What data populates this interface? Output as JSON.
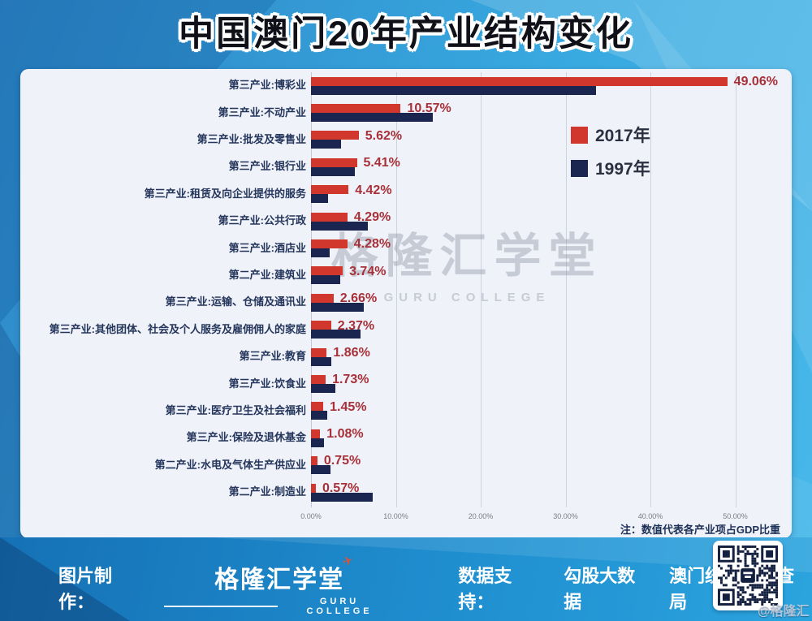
{
  "title": "中国澳门20年产业结构变化",
  "chart_data": {
    "type": "bar",
    "orientation": "horizontal",
    "title": "中国澳门20年产业结构变化",
    "categories": [
      "第三产业:博彩业",
      "第三产业:不动产业",
      "第三产业:批发及零售业",
      "第三产业:银行业",
      "第三产业:租赁及向企业提供的服务",
      "第三产业:公共行政",
      "第三产业:酒店业",
      "第二产业:建筑业",
      "第三产业:运输、仓储及通讯业",
      "第三产业:其他团体、社会及个人服务及雇佣佣人的家庭",
      "第三产业:教育",
      "第三产业:饮食业",
      "第三产业:医疗卫生及社会福利",
      "第三产业:保险及退休基金",
      "第二产业:水电及气体生产供应业",
      "第二产业:制造业"
    ],
    "series": [
      {
        "name": "2017年",
        "color": "#d2372d",
        "values": [
          49.06,
          10.57,
          5.62,
          5.41,
          4.42,
          4.29,
          4.28,
          3.74,
          2.66,
          2.37,
          1.86,
          1.73,
          1.45,
          1.08,
          0.75,
          0.57
        ]
      },
      {
        "name": "1997年",
        "color": "#1a2650",
        "values": [
          33.6,
          14.4,
          3.5,
          5.2,
          2.0,
          6.7,
          2.2,
          3.4,
          6.2,
          5.8,
          2.4,
          2.9,
          1.9,
          1.5,
          2.3,
          7.3
        ]
      }
    ],
    "value_labels": [
      "49.06%",
      "10.57%",
      "5.62%",
      "5.41%",
      "4.42%",
      "4.29%",
      "4.28%",
      "3.74%",
      "2.66%",
      "2.37%",
      "1.86%",
      "1.73%",
      "1.45%",
      "1.08%",
      "0.75%",
      "0.57%"
    ],
    "x_ticks": [
      "0.00%",
      "10.00%",
      "20.00%",
      "30.00%",
      "40.00%",
      "50.00%"
    ],
    "xlim": [
      0,
      55.5
    ],
    "grid": "vertical",
    "legend_position": "inside-upper-area",
    "note": "注：数值代表各产业项占GDP比重"
  },
  "watermark": {
    "cn": "格隆汇学堂",
    "en": "GURU COLLEGE"
  },
  "footer": {
    "made_by_label": "图片制作：",
    "brand_cn": "格隆汇学堂",
    "brand_en": "GURU COLLEGE",
    "data_support_label": "数据支持：",
    "data_sources": [
      "勾股大数据",
      "澳门统计暨普查局"
    ],
    "qr_caption": "@格隆汇"
  }
}
